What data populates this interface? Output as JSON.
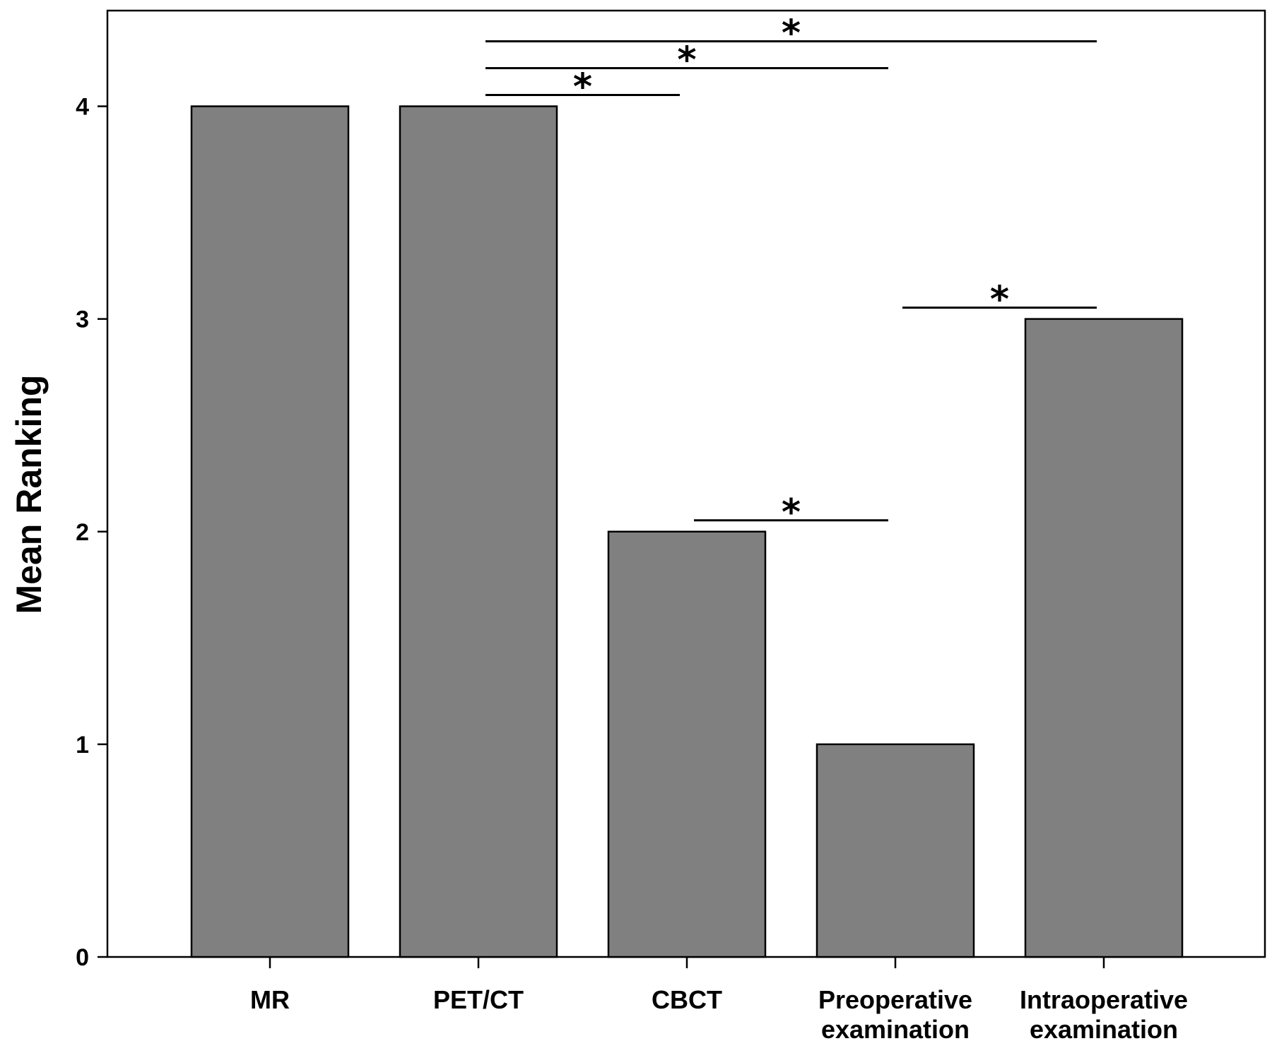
{
  "chart_data": {
    "type": "bar",
    "categories": [
      [
        "MR"
      ],
      [
        "PET/CT"
      ],
      [
        "CBCT"
      ],
      [
        "Preoperative",
        "examination"
      ],
      [
        "Intraoperative",
        "examination"
      ]
    ],
    "values": [
      4,
      4,
      2,
      1,
      3
    ],
    "ylabel": "Mean Ranking",
    "xlabel": "",
    "ylim": [
      0,
      4.45
    ],
    "yticks": [
      0,
      1,
      2,
      3,
      4
    ],
    "bar_color": "#808080",
    "grid": false,
    "significance": [
      {
        "from": "PET/CT",
        "to": "CBCT",
        "label": "*"
      },
      {
        "from": "PET/CT",
        "to": "Preoperative examination",
        "label": "*"
      },
      {
        "from": "PET/CT",
        "to": "Intraoperative examination",
        "label": "*"
      },
      {
        "from": "CBCT",
        "to": "Preoperative examination",
        "label": "*"
      },
      {
        "from": "Preoperative examination",
        "to": "Intraoperative examination",
        "label": "*"
      }
    ]
  }
}
